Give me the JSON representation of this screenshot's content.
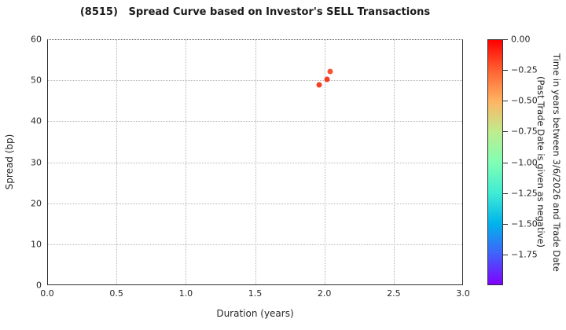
{
  "chart_data": {
    "type": "scatter",
    "title": "(8515)   Spread Curve based on Investor's SELL Transactions",
    "xlabel": "Duration (years)",
    "ylabel": "Spread (bp)",
    "xlim": [
      0.0,
      3.0
    ],
    "ylim": [
      0,
      60
    ],
    "x_tick_labels": [
      "0.0",
      "0.5",
      "1.0",
      "1.5",
      "2.0",
      "2.5",
      "3.0"
    ],
    "y_tick_labels": [
      "0",
      "10",
      "20",
      "30",
      "40",
      "50",
      "60"
    ],
    "grid": "dotted",
    "legend": "none",
    "points": [
      {
        "x": 1.96,
        "y": 48.8,
        "color": "#f4402a"
      },
      {
        "x": 2.02,
        "y": 50.2,
        "color": "#f93b22"
      },
      {
        "x": 2.04,
        "y": 52.2,
        "color": "#f75532"
      }
    ],
    "colorbar": {
      "label_line1": "Time in years between 3/6/2026 and Trade Date",
      "label_line2": "(Past Trade Date is given as negative)",
      "tick_labels": [
        "0.00",
        "−0.25",
        "−0.50",
        "−0.75",
        "−1.00",
        "−1.25",
        "−1.50",
        "−1.75"
      ],
      "value_range": [
        0.0,
        -2.0
      ],
      "colormap": "rainbow",
      "gradient_top_to_bottom": [
        "#ff0000",
        "#ff6232",
        "#ffb462",
        "#bfec8e",
        "#80ffb4",
        "#40ecd4",
        "#00b4ec",
        "#4062fa",
        "#8000ff"
      ]
    }
  }
}
